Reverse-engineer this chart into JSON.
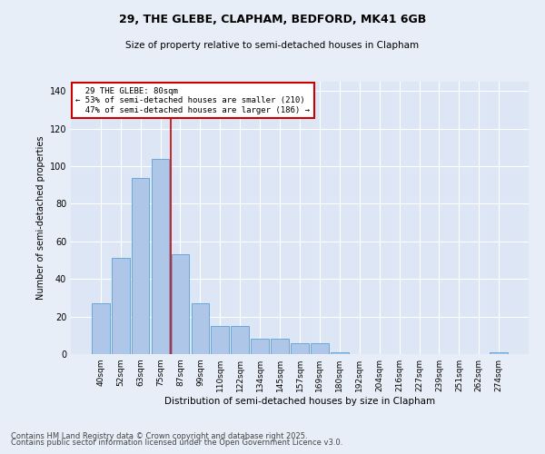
{
  "title_line1": "29, THE GLEBE, CLAPHAM, BEDFORD, MK41 6GB",
  "title_line2": "Size of property relative to semi-detached houses in Clapham",
  "xlabel": "Distribution of semi-detached houses by size in Clapham",
  "ylabel": "Number of semi-detached properties",
  "categories": [
    "40sqm",
    "52sqm",
    "63sqm",
    "75sqm",
    "87sqm",
    "99sqm",
    "110sqm",
    "122sqm",
    "134sqm",
    "145sqm",
    "157sqm",
    "169sqm",
    "180sqm",
    "192sqm",
    "204sqm",
    "216sqm",
    "227sqm",
    "239sqm",
    "251sqm",
    "262sqm",
    "274sqm"
  ],
  "values": [
    27,
    51,
    94,
    104,
    53,
    27,
    15,
    15,
    8,
    8,
    6,
    6,
    1,
    0,
    0,
    0,
    0,
    0,
    0,
    0,
    1
  ],
  "bar_color": "#aec6e8",
  "bar_edge_color": "#5a9fd4",
  "property_bin_index": 3,
  "vline_label": "29 THE GLEBE: 80sqm",
  "smaller_pct": 53,
  "smaller_count": 210,
  "larger_pct": 47,
  "larger_count": 186,
  "annotation_box_color": "#cc0000",
  "ylim": [
    0,
    145
  ],
  "yticks": [
    0,
    20,
    40,
    60,
    80,
    100,
    120,
    140
  ],
  "background_color": "#e8eef7",
  "plot_background": "#dce6f5",
  "footer_line1": "Contains HM Land Registry data © Crown copyright and database right 2025.",
  "footer_line2": "Contains public sector information licensed under the Open Government Licence v3.0."
}
